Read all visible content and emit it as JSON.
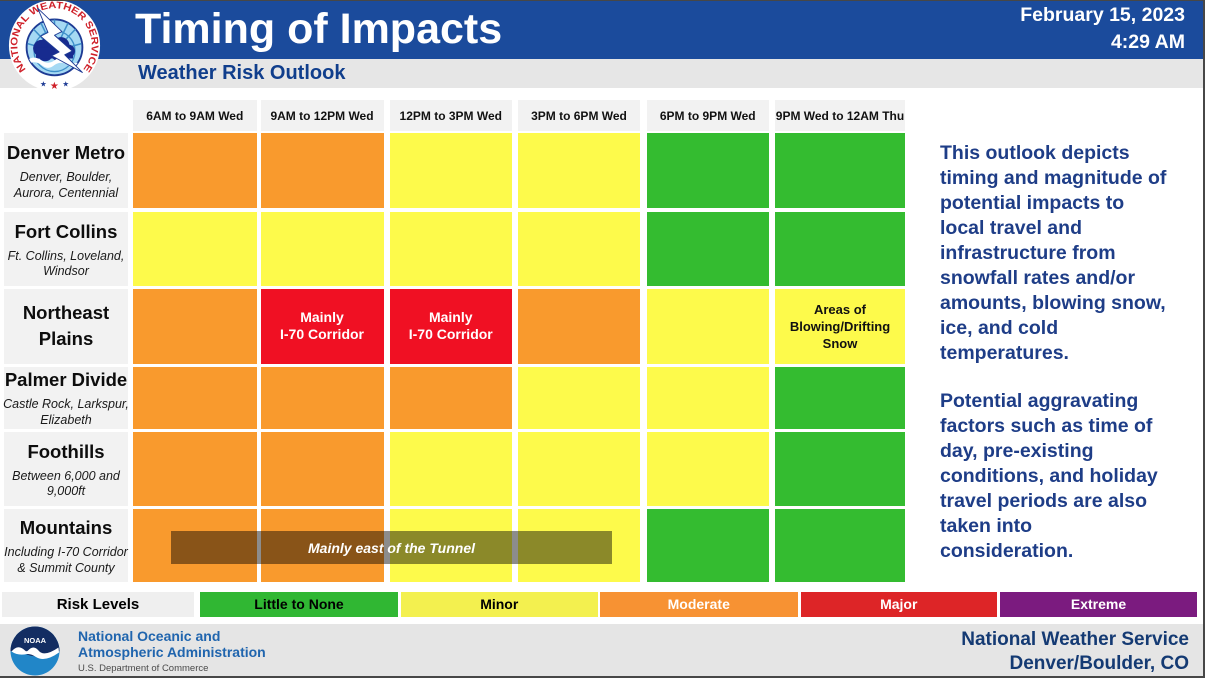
{
  "header": {
    "title": "Timing of Impacts",
    "subtitle": "Weather Risk Outlook",
    "date": "February 15, 2023",
    "time": "4:29 AM"
  },
  "nws_logo_ring_text": "NATIONAL WEATHER SERVICE",
  "chart_data": {
    "type": "heatmap",
    "title": "Timing of Impacts",
    "x_categories": [
      "6AM to 9AM Wed",
      "9AM to 12PM Wed",
      "12PM to 3PM Wed",
      "3PM to 6PM Wed",
      "6PM to 9PM Wed",
      "9PM Wed to 12AM Thu"
    ],
    "y_categories": [
      "Denver Metro",
      "Fort Collins",
      "Northeast Plains",
      "Palmer Divide",
      "Foothills",
      "Mountains"
    ],
    "values": [
      [
        "moderate",
        "moderate",
        "minor",
        "minor",
        "little_to_none",
        "little_to_none"
      ],
      [
        "minor",
        "minor",
        "minor",
        "minor",
        "little_to_none",
        "little_to_none"
      ],
      [
        "moderate",
        "major",
        "major",
        "moderate",
        "minor",
        "minor"
      ],
      [
        "moderate",
        "moderate",
        "moderate",
        "minor",
        "minor",
        "little_to_none"
      ],
      [
        "moderate",
        "moderate",
        "minor",
        "minor",
        "minor",
        "little_to_none"
      ],
      [
        "moderate",
        "moderate",
        "minor",
        "minor",
        "little_to_none",
        "little_to_none"
      ]
    ],
    "cell_notes": [
      {
        "row": 2,
        "col": 1,
        "lines": [
          "Mainly",
          "I-70 Corridor"
        ],
        "text_color": "#ffffff"
      },
      {
        "row": 2,
        "col": 2,
        "lines": [
          "Mainly",
          "I-70 Corridor"
        ],
        "text_color": "#ffffff"
      },
      {
        "row": 2,
        "col": 5,
        "lines": [
          "Areas of",
          "Blowing/Drifting",
          "Snow"
        ],
        "text_color": "#111111"
      }
    ],
    "overlay_banner": {
      "row": 5,
      "label": "Mainly east of the Tunnel"
    },
    "legend_position": "bottom"
  },
  "rows": [
    {
      "name": "Denver Metro",
      "name_lines": [
        "Denver Metro"
      ],
      "sublines": [
        "Denver, Boulder,",
        "Aurora, Centennial"
      ]
    },
    {
      "name": "Fort Collins",
      "name_lines": [
        "Fort Collins"
      ],
      "sublines": [
        "Ft. Collins, Loveland,",
        "Windsor"
      ]
    },
    {
      "name": "Northeast Plains",
      "name_lines": [
        "Northeast",
        "Plains"
      ],
      "sublines": []
    },
    {
      "name": "Palmer Divide",
      "name_lines": [
        "Palmer Divide"
      ],
      "sublines": [
        "Castle Rock, Larkspur,",
        "Elizabeth"
      ]
    },
    {
      "name": "Foothills",
      "name_lines": [
        "Foothills"
      ],
      "sublines": [
        "Between 6,000 and",
        "9,000ft"
      ]
    },
    {
      "name": "Mountains",
      "name_lines": [
        "Mountains"
      ],
      "sublines": [
        "Including I-70 Corridor",
        "& Summit County"
      ]
    }
  ],
  "risk_colors": {
    "little_to_none": "#34BC30",
    "minor": "#FDFA4B",
    "moderate": "#F99A2D",
    "major": "#F01023",
    "extreme": "#7B1B7F"
  },
  "legend": {
    "title": "Risk Levels",
    "items": [
      {
        "label": "Little to None",
        "color": "#30B733",
        "text_color": "#000000"
      },
      {
        "label": "Minor",
        "color": "#F3F04F",
        "text_color": "#000000"
      },
      {
        "label": "Moderate",
        "color": "#F79233",
        "text_color": "#ffffff"
      },
      {
        "label": "Major",
        "color": "#DD2527",
        "text_color": "#ffffff"
      },
      {
        "label": "Extreme",
        "color": "#7B1B7F",
        "text_color": "#ffffff"
      }
    ]
  },
  "side_panel": {
    "paragraph1": "This outlook depicts timing and magnitude of potential impacts to local travel and infrastructure from snowfall rates and/or amounts, blowing snow, ice, and cold temperatures.",
    "paragraph2": "Potential aggravating factors such as time of day, pre-existing conditions, and holiday travel periods are also taken into consideration."
  },
  "footer": {
    "noaa_abbr": "NOAA",
    "noaa_line1": "National Oceanic and",
    "noaa_line2": "Atmospheric Administration",
    "noaa_dept": "U.S. Department of Commerce",
    "office_line1": "National Weather Service",
    "office_line2": "Denver/Boulder, CO"
  }
}
